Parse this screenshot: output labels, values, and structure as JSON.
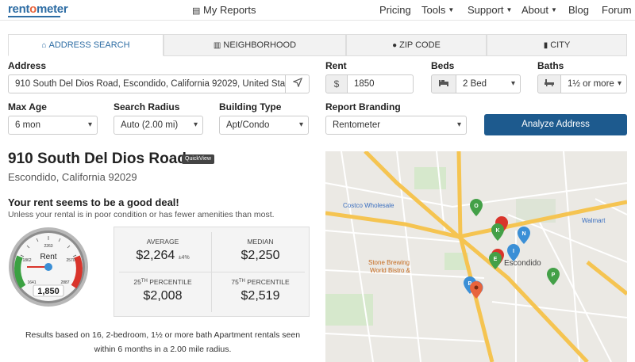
{
  "header": {
    "logo_main": "rent",
    "logo_accent": "o",
    "logo_end": "meter",
    "my_reports": "My Reports",
    "nav": [
      {
        "label": "Pricing",
        "caret": false
      },
      {
        "label": "Tools",
        "caret": true
      },
      {
        "label": "Support",
        "caret": true
      },
      {
        "label": "About",
        "caret": true
      },
      {
        "label": "Blog",
        "caret": false
      },
      {
        "label": "Forum",
        "caret": false
      }
    ]
  },
  "tabs": [
    {
      "label": "ADDRESS SEARCH",
      "icon": "home-icon",
      "active": true
    },
    {
      "label": "NEIGHBORHOOD",
      "icon": "buildings-icon",
      "active": false
    },
    {
      "label": "ZIP CODE",
      "icon": "map-marker-icon",
      "active": false
    },
    {
      "label": "CITY",
      "icon": "building-icon",
      "active": false
    }
  ],
  "form": {
    "address_label": "Address",
    "address_value": "910 South Del Dios Road, Escondido, California 92029, United State",
    "rent_label": "Rent",
    "rent_prefix": "$",
    "rent_value": "1850",
    "beds_label": "Beds",
    "beds_value": "2 Bed",
    "baths_label": "Baths",
    "baths_value": "1½ or more",
    "max_age_label": "Max Age",
    "max_age_value": "6 mon",
    "radius_label": "Search Radius",
    "radius_value": "Auto (2.00 mi)",
    "building_label": "Building Type",
    "building_value": "Apt/Condo",
    "branding_label": "Report Branding",
    "branding_value": "Rentometer",
    "analyze_label": "Analyze Address"
  },
  "result": {
    "title": "910 South Del Dios Road",
    "quickview": "QuickView",
    "subtitle": "Escondido, California 92029",
    "deal_heading": "Your rent seems to be a good deal!",
    "deal_sub": "Unless your rental is in poor condition or has fewer amenities than most.",
    "gauge": {
      "label": "Rent",
      "value": "1,850",
      "ticks": [
        "2263",
        "1862",
        "2570",
        "1641",
        "2887"
      ],
      "needle_value": 1850
    },
    "stats": {
      "average_label": "AVERAGE",
      "average_value": "$2,264",
      "average_pct": "±4%",
      "median_label": "MEDIAN",
      "median_value": "$2,250",
      "p25_num": "25",
      "p25_sup": "TH",
      "p25_label": "PERCENTILE",
      "p25_value": "$2,008",
      "p75_num": "75",
      "p75_sup": "TH",
      "p75_label": "PERCENTILE",
      "p75_value": "$2,519"
    },
    "summary": "Results based on 16, 2-bedroom, 1½ or more bath Apartment rentals seen within 6 months in a 2.00 mile radius."
  },
  "map": {
    "places": [
      "Costco Wholesale",
      "Walmart",
      "Stone Brewing",
      "World Bistro &",
      "Escondido"
    ],
    "markers": [
      "O",
      "K",
      "N",
      "E",
      "I",
      "P",
      "B"
    ],
    "colors": {
      "green": "#43a047",
      "blue": "#3b8fd6",
      "red": "#d9342b",
      "orange": "#e8643c",
      "road": "#f5c451"
    }
  },
  "colors": {
    "brand": "#2e6da4",
    "button": "#1d5a8e"
  }
}
